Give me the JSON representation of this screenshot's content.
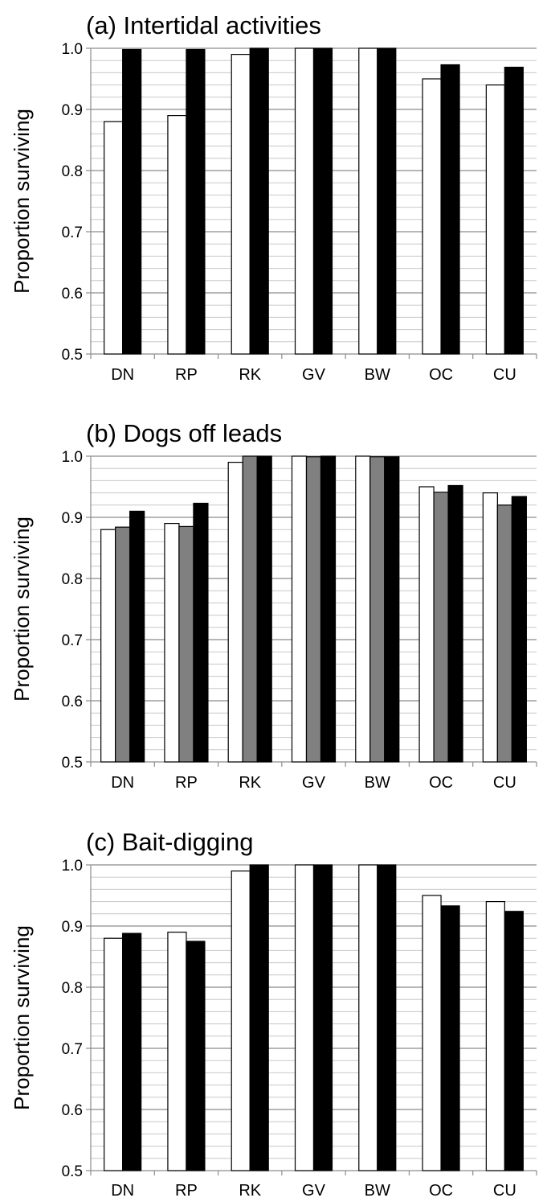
{
  "chart_data": [
    {
      "type": "bar",
      "title": "(a) Intertidal activities",
      "xlabel": "",
      "ylabel": "Proportion surviving",
      "ylim": [
        0.5,
        1.0
      ],
      "yticks": [
        "0.5",
        "0.6",
        "0.7",
        "0.8",
        "0.9",
        "1.0"
      ],
      "grid": "horizontal",
      "categories": [
        "DN",
        "RP",
        "RK",
        "GV",
        "BW",
        "OC",
        "CU"
      ],
      "series": [
        {
          "fill": "#ffffff",
          "values": [
            0.88,
            0.89,
            0.99,
            1.0,
            1.0,
            0.95,
            0.94
          ]
        },
        {
          "fill": "#000000",
          "values": [
            0.998,
            0.998,
            1.0,
            1.0,
            1.0,
            0.973,
            0.969
          ]
        }
      ]
    },
    {
      "type": "bar",
      "title": "(b) Dogs off leads",
      "xlabel": "",
      "ylabel": "Proportion surviving",
      "ylim": [
        0.5,
        1.0
      ],
      "yticks": [
        "0.5",
        "0.6",
        "0.7",
        "0.8",
        "0.9",
        "1.0"
      ],
      "grid": "horizontal",
      "categories": [
        "DN",
        "RP",
        "RK",
        "GV",
        "BW",
        "OC",
        "CU"
      ],
      "series": [
        {
          "fill": "#ffffff",
          "values": [
            0.88,
            0.89,
            0.99,
            1.0,
            1.0,
            0.95,
            0.94
          ]
        },
        {
          "fill": "#808080",
          "values": [
            0.884,
            0.885,
            1.0,
            0.999,
            0.999,
            0.941,
            0.92
          ]
        },
        {
          "fill": "#000000",
          "values": [
            0.91,
            0.923,
            1.0,
            1.0,
            0.999,
            0.952,
            0.934
          ]
        }
      ]
    },
    {
      "type": "bar",
      "title": "(c) Bait-digging",
      "xlabel": "",
      "ylabel": "Proportion surviving",
      "ylim": [
        0.5,
        1.0
      ],
      "yticks": [
        "0.5",
        "0.6",
        "0.7",
        "0.8",
        "0.9",
        "1.0"
      ],
      "grid": "horizontal",
      "categories": [
        "DN",
        "RP",
        "RK",
        "GV",
        "BW",
        "OC",
        "CU"
      ],
      "series": [
        {
          "fill": "#ffffff",
          "values": [
            0.88,
            0.89,
            0.99,
            1.0,
            1.0,
            0.95,
            0.94
          ]
        },
        {
          "fill": "#000000",
          "values": [
            0.888,
            0.875,
            1.0,
            1.0,
            1.0,
            0.933,
            0.924
          ]
        }
      ]
    }
  ]
}
